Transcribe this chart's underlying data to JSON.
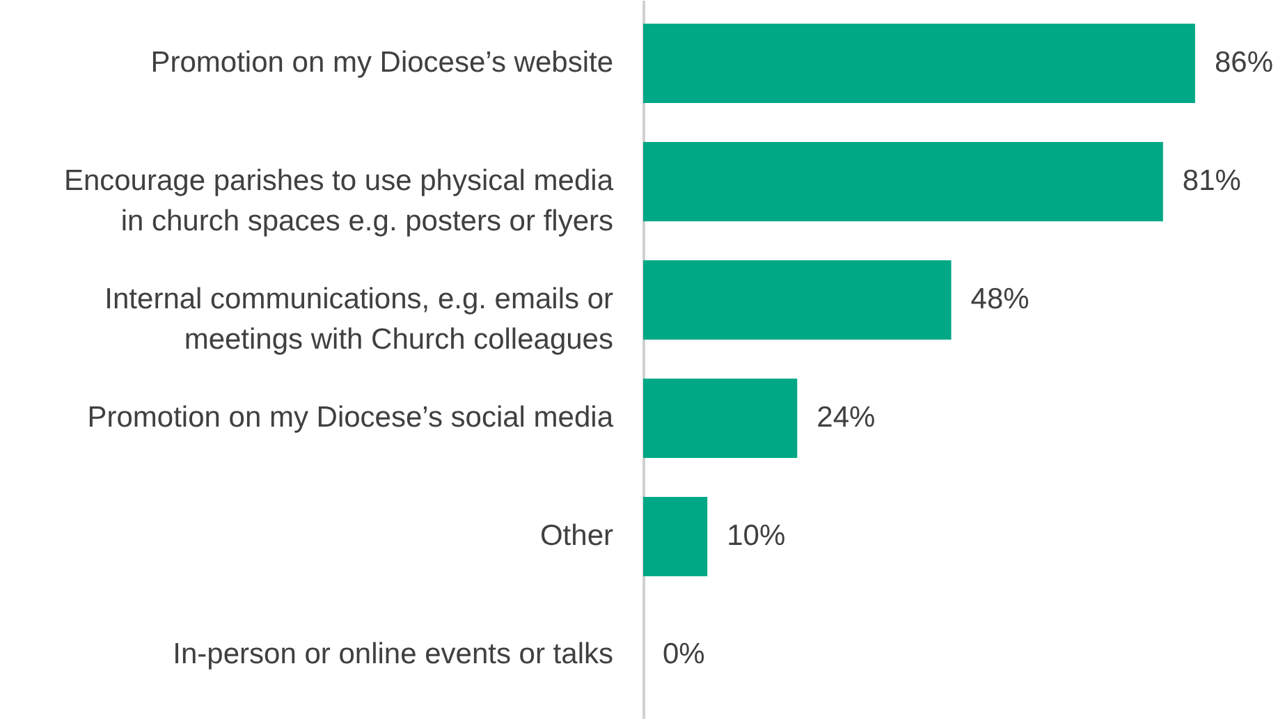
{
  "chart_data": {
    "type": "bar",
    "orientation": "horizontal",
    "categories": [
      "Promotion on my Diocese’s website",
      "Encourage parishes to use physical media in church spaces e.g. posters or flyers",
      "Internal communications, e.g. emails or meetings with Church colleagues",
      "Promotion on my Diocese’s social media",
      "Other",
      "In-person or online events or talks"
    ],
    "values": [
      86,
      81,
      48,
      24,
      10,
      0
    ],
    "value_labels": [
      "86%",
      "81%",
      "48%",
      "24%",
      "10%",
      "0%"
    ],
    "color": "#00a886"
  }
}
